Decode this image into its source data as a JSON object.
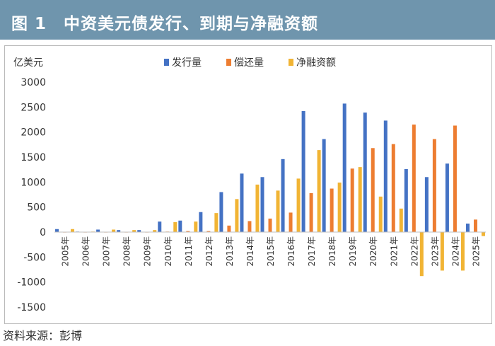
{
  "header": {
    "title": "图 1　中资美元债发行、到期与净融资额"
  },
  "source": "资料来源：彭博",
  "colors": {
    "issuance": "#4472c4",
    "repayment": "#ed7d31",
    "net": "#f1b434",
    "header_bg": "#6f95ad"
  },
  "chart_data": {
    "type": "bar",
    "title": "中资美元债发行、到期与净融资额",
    "ylabel": "亿美元",
    "xlabel": "",
    "ylim": [
      -1500,
      3000
    ],
    "yticks": [
      3000,
      2500,
      2000,
      1500,
      1000,
      500,
      0,
      -500,
      -1000,
      -1500
    ],
    "ytick_labels": [
      "3000",
      "2500",
      "2000",
      "1500",
      "1000",
      "500",
      "0",
      "-500",
      "-1000",
      "-1500"
    ],
    "grid": false,
    "legend_position": "top",
    "categories": [
      "2005年",
      "2006年",
      "2007年",
      "2008年",
      "2009年",
      "2010年",
      "2011年",
      "2012年",
      "2013年",
      "2014年",
      "2015年",
      "2016年",
      "2017年",
      "2018年",
      "2019年",
      "2020年",
      "2021年",
      "2022年",
      "2023年",
      "2024年",
      "2025年"
    ],
    "series": [
      {
        "name": "发行量",
        "key": "issuance",
        "values": [
          60,
          10,
          50,
          40,
          40,
          210,
          230,
          400,
          800,
          1170,
          1100,
          1460,
          2420,
          1860,
          2570,
          2390,
          2230,
          1260,
          1100,
          1370,
          170
        ]
      },
      {
        "name": "偿还量",
        "key": "repayment",
        "values": [
          0,
          0,
          0,
          0,
          0,
          10,
          20,
          20,
          130,
          220,
          270,
          390,
          780,
          870,
          1270,
          1680,
          1760,
          2150,
          1860,
          2130,
          250
        ]
      },
      {
        "name": "净融资额",
        "key": "net",
        "values": [
          60,
          10,
          50,
          40,
          40,
          200,
          210,
          380,
          660,
          950,
          830,
          1070,
          1640,
          990,
          1300,
          710,
          470,
          -880,
          -770,
          -770,
          -80
        ]
      }
    ]
  }
}
